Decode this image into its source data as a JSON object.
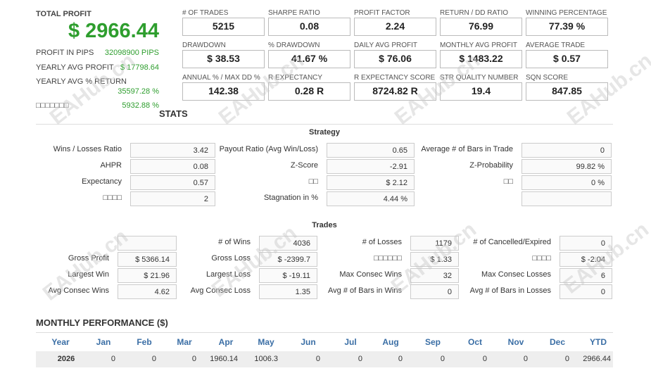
{
  "summary": {
    "total_profit_label": "TOTAL PROFIT",
    "total_profit": "$ 2966.44",
    "rows": [
      [
        "PROFIT IN PIPS",
        "32098900 PIPS"
      ],
      [
        "YEARLY AVG PROFIT",
        "$ 17798.64"
      ],
      [
        "YEARLY AVG % RETURN",
        "35597.28 %"
      ],
      [
        "□□□□□□□",
        "5932.88 %"
      ]
    ]
  },
  "metrics": [
    {
      "label": "# OF TRADES",
      "value": "5215"
    },
    {
      "label": "SHARPE RATIO",
      "value": "0.08"
    },
    {
      "label": "PROFIT FACTOR",
      "value": "2.24"
    },
    {
      "label": "RETURN / DD RATIO",
      "value": "76.99"
    },
    {
      "label": "WINNING PERCENTAGE",
      "value": "77.39 %"
    },
    {
      "label": "DRAWDOWN",
      "value": "$ 38.53"
    },
    {
      "label": "% DRAWDOWN",
      "value": "41.67 %"
    },
    {
      "label": "DAILY AVG PROFIT",
      "value": "$ 76.06"
    },
    {
      "label": "MONTHLY AVG PROFIT",
      "value": "$ 1483.22"
    },
    {
      "label": "AVERAGE TRADE",
      "value": "$ 0.57"
    },
    {
      "label": "ANNUAL % / MAX DD %",
      "value": "142.38"
    },
    {
      "label": "R EXPECTANCY",
      "value": "0.28 R"
    },
    {
      "label": "R EXPECTANCY SCORE",
      "value": "8724.82 R"
    },
    {
      "label": "STR QUALITY NUMBER",
      "value": "19.4"
    },
    {
      "label": "SQN SCORE",
      "value": "847.85"
    }
  ],
  "stats_title": "STATS",
  "strategy": {
    "title": "Strategy",
    "rows": [
      [
        [
          "Wins / Losses Ratio",
          "3.42"
        ],
        [
          "Payout Ratio (Avg Win/Loss)",
          "0.65"
        ],
        [
          "Average # of Bars in Trade",
          "0"
        ]
      ],
      [
        [
          "AHPR",
          "0.08"
        ],
        [
          "Z-Score",
          "-2.91"
        ],
        [
          "Z-Probability",
          "99.82 %"
        ]
      ],
      [
        [
          "Expectancy",
          "0.57"
        ],
        [
          "□□",
          "$ 2.12"
        ],
        [
          "□□",
          "0 %"
        ]
      ],
      [
        [
          "□□□□",
          "2"
        ],
        [
          "Stagnation in %",
          "4.44 %"
        ],
        null
      ]
    ]
  },
  "trades": {
    "title": "Trades",
    "rows": [
      [
        null,
        [
          "# of Wins",
          "4036"
        ],
        [
          "# of Losses",
          "1179"
        ],
        [
          "# of Cancelled/Expired",
          "0"
        ]
      ],
      [
        [
          "Gross Profit",
          "$ 5366.14"
        ],
        [
          "Gross Loss",
          "$ -2399.7"
        ],
        [
          "□□□□□□",
          "$ 1.33"
        ],
        [
          "□□□□",
          "$ -2.04"
        ]
      ],
      [
        [
          "Largest Win",
          "$ 21.96"
        ],
        [
          "Largest Loss",
          "$ -19.11"
        ],
        [
          "Max Consec Wins",
          "32"
        ],
        [
          "Max Consec Losses",
          "6"
        ]
      ],
      [
        [
          "Avg Consec Wins",
          "4.62"
        ],
        [
          "Avg Consec Loss",
          "1.35"
        ],
        [
          "Avg # of Bars in Wins",
          "0"
        ],
        [
          "Avg # of Bars in Losses",
          "0"
        ]
      ]
    ]
  },
  "monthly": {
    "title": "MONTHLY PERFORMANCE ($)",
    "header": [
      "Year",
      "Jan",
      "Feb",
      "Mar",
      "Apr",
      "May",
      "Jun",
      "Jul",
      "Aug",
      "Sep",
      "Oct",
      "Nov",
      "Dec",
      "YTD"
    ],
    "rows": [
      [
        "2026",
        "0",
        "0",
        "0",
        "1960.14",
        "1006.3",
        "0",
        "0",
        "0",
        "0",
        "0",
        "0",
        "0",
        "2966.44"
      ]
    ]
  },
  "watermark": "EAHub.cn"
}
